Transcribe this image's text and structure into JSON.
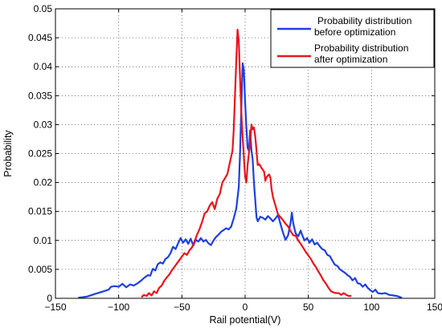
{
  "chart_data": {
    "type": "line",
    "title": "",
    "xlabel": "Rail potential(V)",
    "ylabel": "Probability",
    "xlim": [
      -150,
      150
    ],
    "ylim": [
      0,
      0.05
    ],
    "xticks": [
      -150,
      -100,
      -50,
      0,
      50,
      100,
      150
    ],
    "yticks": [
      0,
      0.005,
      0.01,
      0.015,
      0.02,
      0.025,
      0.03,
      0.035,
      0.04,
      0.045,
      0.05
    ],
    "xtick_labels": [
      "−150",
      "−100",
      "−50",
      "0",
      "50",
      "100",
      "150"
    ],
    "ytick_labels": [
      "0",
      "0.005",
      "0.01",
      "0.015",
      "0.02",
      "0.025",
      "0.03",
      "0.035",
      "0.04",
      "0.045",
      "0.05"
    ],
    "grid": true,
    "legend_position": "top-right",
    "series": [
      {
        "name": "Probability distribution before optimization",
        "legend_lines": [
          "Probability distribution",
          "before optimization"
        ],
        "color": "#1f3fe0",
        "points": [
          [
            -132,
            0.0001
          ],
          [
            -125,
            0.0003
          ],
          [
            -118,
            0.0008
          ],
          [
            -112,
            0.0012
          ],
          [
            -108,
            0.0015
          ],
          [
            -106,
            0.002
          ],
          [
            -103,
            0.0021
          ],
          [
            -100,
            0.002
          ],
          [
            -97,
            0.0025
          ],
          [
            -94,
            0.0019
          ],
          [
            -91,
            0.0024
          ],
          [
            -88,
            0.0022
          ],
          [
            -85,
            0.0026
          ],
          [
            -82,
            0.0031
          ],
          [
            -80,
            0.0035
          ],
          [
            -77,
            0.004
          ],
          [
            -75,
            0.0039
          ],
          [
            -73,
            0.0051
          ],
          [
            -71,
            0.0048
          ],
          [
            -69,
            0.0059
          ],
          [
            -67,
            0.0062
          ],
          [
            -65,
            0.006
          ],
          [
            -63,
            0.0068
          ],
          [
            -61,
            0.0071
          ],
          [
            -59,
            0.0078
          ],
          [
            -57,
            0.0089
          ],
          [
            -55,
            0.0085
          ],
          [
            -53,
            0.0095
          ],
          [
            -51,
            0.0104
          ],
          [
            -49,
            0.0096
          ],
          [
            -47,
            0.0102
          ],
          [
            -45,
            0.0094
          ],
          [
            -43,
            0.0103
          ],
          [
            -41,
            0.0091
          ],
          [
            -39,
            0.0101
          ],
          [
            -37,
            0.0098
          ],
          [
            -35,
            0.0104
          ],
          [
            -33,
            0.0098
          ],
          [
            -31,
            0.0101
          ],
          [
            -29,
            0.0095
          ],
          [
            -27,
            0.0092
          ],
          [
            -25,
            0.01
          ],
          [
            -23,
            0.0106
          ],
          [
            -21,
            0.011
          ],
          [
            -19,
            0.0115
          ],
          [
            -17,
            0.0118
          ],
          [
            -15,
            0.0121
          ],
          [
            -13,
            0.0119
          ],
          [
            -11,
            0.0124
          ],
          [
            -9,
            0.0138
          ],
          [
            -7,
            0.0155
          ],
          [
            -5,
            0.0192
          ],
          [
            -4,
            0.025
          ],
          [
            -3,
            0.033
          ],
          [
            -2,
            0.0406
          ],
          [
            -1,
            0.0395
          ],
          [
            0,
            0.034
          ],
          [
            1,
            0.0295
          ],
          [
            2,
            0.026
          ],
          [
            3,
            0.0255
          ],
          [
            4,
            0.029
          ],
          [
            5,
            0.0255
          ],
          [
            6,
            0.024
          ],
          [
            7,
            0.02
          ],
          [
            8,
            0.017
          ],
          [
            9,
            0.014
          ],
          [
            10,
            0.0133
          ],
          [
            12,
            0.0141
          ],
          [
            14,
            0.0139
          ],
          [
            16,
            0.0136
          ],
          [
            18,
            0.0142
          ],
          [
            20,
            0.0138
          ],
          [
            22,
            0.0133
          ],
          [
            24,
            0.0138
          ],
          [
            26,
            0.0144
          ],
          [
            28,
            0.0128
          ],
          [
            30,
            0.0113
          ],
          [
            32,
            0.0101
          ],
          [
            34,
            0.0109
          ],
          [
            36,
            0.0131
          ],
          [
            37,
            0.0148
          ],
          [
            38,
            0.013
          ],
          [
            40,
            0.0112
          ],
          [
            42,
            0.0107
          ],
          [
            44,
            0.0117
          ],
          [
            45,
            0.011
          ],
          [
            47,
            0.01
          ],
          [
            49,
            0.0104
          ],
          [
            51,
            0.0096
          ],
          [
            53,
            0.0102
          ],
          [
            55,
            0.0093
          ],
          [
            57,
            0.0096
          ],
          [
            59,
            0.009
          ],
          [
            61,
            0.0085
          ],
          [
            63,
            0.0083
          ],
          [
            65,
            0.0075
          ],
          [
            67,
            0.0073
          ],
          [
            69,
            0.0065
          ],
          [
            71,
            0.0058
          ],
          [
            73,
            0.0056
          ],
          [
            75,
            0.005
          ],
          [
            77,
            0.0047
          ],
          [
            79,
            0.0044
          ],
          [
            81,
            0.004
          ],
          [
            83,
            0.0037
          ],
          [
            85,
            0.0031
          ],
          [
            87,
            0.0035
          ],
          [
            89,
            0.0026
          ],
          [
            91,
            0.0025
          ],
          [
            93,
            0.002
          ],
          [
            95,
            0.0024
          ],
          [
            97,
            0.0018
          ],
          [
            99,
            0.0014
          ],
          [
            101,
            0.0011
          ],
          [
            103,
            0.0015
          ],
          [
            105,
            0.0009
          ],
          [
            108,
            0.0008
          ],
          [
            111,
            0.0009
          ],
          [
            114,
            0.0006
          ],
          [
            117,
            0.0005
          ],
          [
            120,
            0.0004
          ],
          [
            124,
            0.0001
          ]
        ]
      },
      {
        "name": "Probability distribution after optimization",
        "legend_lines": [
          "Probability distribution",
          "after optimization"
        ],
        "color": "#e8141c",
        "points": [
          [
            -82,
            0.0002
          ],
          [
            -80,
            0.0006
          ],
          [
            -78,
            0.0004
          ],
          [
            -76,
            0.0009
          ],
          [
            -74,
            0.0005
          ],
          [
            -72,
            0.0012
          ],
          [
            -70,
            0.0009
          ],
          [
            -68,
            0.0018
          ],
          [
            -66,
            0.0022
          ],
          [
            -64,
            0.003
          ],
          [
            -62,
            0.0036
          ],
          [
            -60,
            0.0041
          ],
          [
            -58,
            0.0048
          ],
          [
            -56,
            0.0054
          ],
          [
            -54,
            0.006
          ],
          [
            -52,
            0.0066
          ],
          [
            -50,
            0.0072
          ],
          [
            -48,
            0.0078
          ],
          [
            -46,
            0.0075
          ],
          [
            -44,
            0.0083
          ],
          [
            -42,
            0.0088
          ],
          [
            -40,
            0.0098
          ],
          [
            -38,
            0.011
          ],
          [
            -36,
            0.012
          ],
          [
            -34,
            0.0132
          ],
          [
            -32,
            0.0147
          ],
          [
            -30,
            0.015
          ],
          [
            -28,
            0.016
          ],
          [
            -26,
            0.0166
          ],
          [
            -24,
            0.0154
          ],
          [
            -22,
            0.0172
          ],
          [
            -20,
            0.018
          ],
          [
            -18,
            0.02
          ],
          [
            -16,
            0.0207
          ],
          [
            -14,
            0.0215
          ],
          [
            -12,
            0.0235
          ],
          [
            -10,
            0.0255
          ],
          [
            -9,
            0.029
          ],
          [
            -8,
            0.035
          ],
          [
            -7,
            0.041
          ],
          [
            -6,
            0.0464
          ],
          [
            -5,
            0.0445
          ],
          [
            -4,
            0.038
          ],
          [
            -3,
            0.032
          ],
          [
            -2,
            0.028
          ],
          [
            -1,
            0.0245
          ],
          [
            0,
            0.021
          ],
          [
            1,
            0.02
          ],
          [
            2,
            0.023
          ],
          [
            3,
            0.025
          ],
          [
            4,
            0.027
          ],
          [
            5,
            0.03
          ],
          [
            6,
            0.0292
          ],
          [
            7,
            0.0295
          ],
          [
            8,
            0.028
          ],
          [
            9,
            0.0255
          ],
          [
            10,
            0.023
          ],
          [
            11,
            0.0232
          ],
          [
            12,
            0.0229
          ],
          [
            13,
            0.0225
          ],
          [
            15,
            0.0219
          ],
          [
            16,
            0.0203
          ],
          [
            17,
            0.0209
          ],
          [
            18,
            0.0212
          ],
          [
            19,
            0.0214
          ],
          [
            20,
            0.0208
          ],
          [
            21,
            0.0188
          ],
          [
            22,
            0.0175
          ],
          [
            24,
            0.016
          ],
          [
            26,
            0.0145
          ],
          [
            28,
            0.014
          ],
          [
            30,
            0.0135
          ],
          [
            32,
            0.0129
          ],
          [
            34,
            0.0124
          ],
          [
            36,
            0.0116
          ],
          [
            38,
            0.0109
          ],
          [
            40,
            0.0108
          ],
          [
            42,
            0.01
          ],
          [
            44,
            0.0094
          ],
          [
            46,
            0.0087
          ],
          [
            48,
            0.008
          ],
          [
            50,
            0.0074
          ],
          [
            52,
            0.0068
          ],
          [
            54,
            0.006
          ],
          [
            56,
            0.0054
          ],
          [
            58,
            0.0046
          ],
          [
            60,
            0.0039
          ],
          [
            62,
            0.0031
          ],
          [
            64,
            0.0025
          ],
          [
            66,
            0.0018
          ],
          [
            68,
            0.0012
          ],
          [
            70,
            0.001
          ],
          [
            72,
            0.0009
          ],
          [
            74,
            0.0009
          ],
          [
            76,
            0.0006
          ],
          [
            78,
            0.0009
          ],
          [
            80,
            0.0006
          ],
          [
            82,
            0.0004
          ],
          [
            84,
            0.0004
          ]
        ]
      }
    ]
  }
}
